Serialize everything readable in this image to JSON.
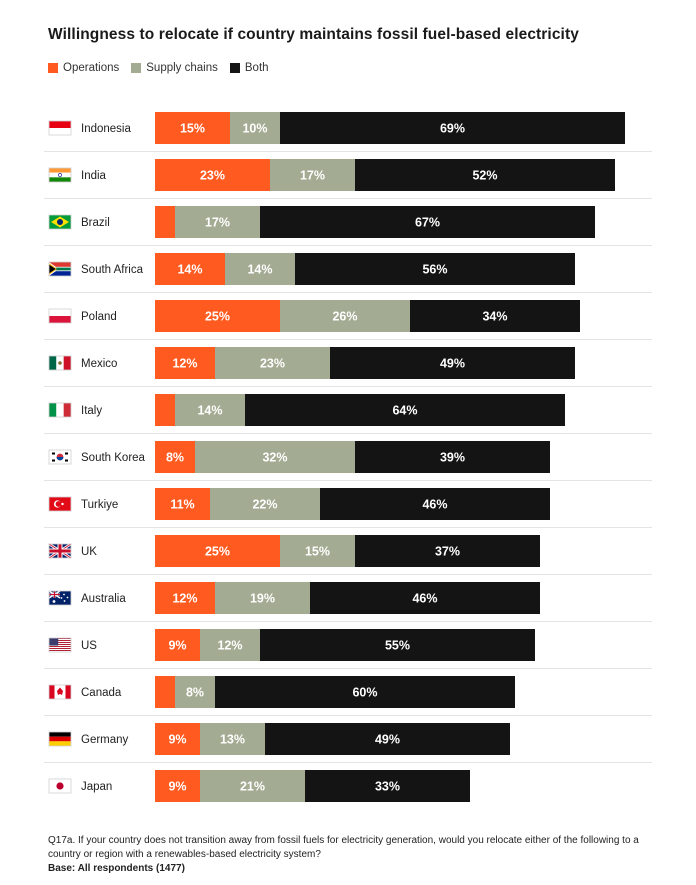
{
  "chart_data": {
    "type": "bar",
    "stacked": true,
    "orientation": "horizontal",
    "title": "Willingness to relocate if country maintains fossil fuel-based electricity",
    "legend_placement": "top-left",
    "grid": false,
    "xlim": [
      0,
      100
    ],
    "categories": [
      "Indonesia",
      "India",
      "Brazil",
      "South Africa",
      "Poland",
      "Mexico",
      "Italy",
      "South Korea",
      "Turkiye",
      "UK",
      "Australia",
      "US",
      "Canada",
      "Germany",
      "Japan"
    ],
    "category_flags": [
      "flag-indonesia-icon",
      "flag-india-icon",
      "flag-brazil-icon",
      "flag-south-africa-icon",
      "flag-poland-icon",
      "flag-mexico-icon",
      "flag-italy-icon",
      "flag-south-korea-icon",
      "flag-turkiye-icon",
      "flag-uk-icon",
      "flag-australia-icon",
      "flag-us-icon",
      "flag-canada-icon",
      "flag-germany-icon",
      "flag-japan-icon"
    ],
    "series": [
      {
        "name": "Operations",
        "color": "#ff5a1f",
        "text_color": "#ffffff",
        "values": [
          15,
          23,
          4,
          14,
          25,
          12,
          4,
          8,
          11,
          25,
          12,
          9,
          4,
          9,
          9
        ],
        "labels": [
          "15%",
          "23%",
          "",
          "14%",
          "25%",
          "12%",
          "",
          "8%",
          "11%",
          "25%",
          "12%",
          "9%",
          "",
          "9%",
          "9%"
        ]
      },
      {
        "name": "Supply chains",
        "color": "#a3ab93",
        "text_color": "#ffffff",
        "values": [
          10,
          17,
          17,
          14,
          26,
          23,
          14,
          32,
          22,
          15,
          19,
          12,
          8,
          13,
          21
        ],
        "labels": [
          "10%",
          "17%",
          "17%",
          "14%",
          "26%",
          "23%",
          "14%",
          "32%",
          "22%",
          "15%",
          "19%",
          "12%",
          "8%",
          "13%",
          "21%"
        ]
      },
      {
        "name": "Both",
        "color": "#141414",
        "text_color": "#ffffff",
        "values": [
          69,
          52,
          67,
          56,
          34,
          49,
          64,
          39,
          46,
          37,
          46,
          55,
          60,
          49,
          33
        ],
        "labels": [
          "69%",
          "52%",
          "67%",
          "56%",
          "34%",
          "49%",
          "64%",
          "39%",
          "46%",
          "37%",
          "46%",
          "55%",
          "60%",
          "49%",
          "33%"
        ]
      }
    ]
  },
  "footnote": {
    "question": "Q17a. If your country does not transition away from fossil fuels for electricity generation, would you relocate either of the following to a country or region with a renewables-based electricity system?",
    "base": "Base: All respondents (1477)"
  },
  "colors": {
    "divider": "#e4e4e4"
  }
}
